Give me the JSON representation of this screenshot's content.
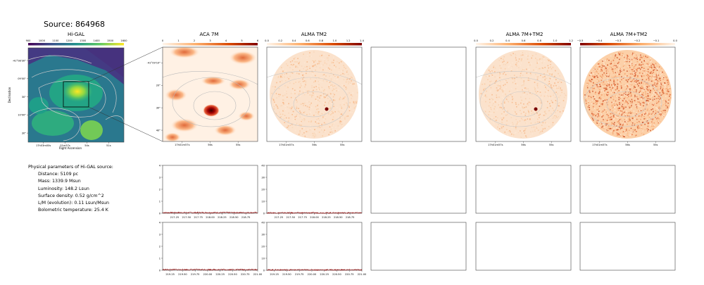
{
  "title": "Source: 864968",
  "panels": {
    "higal": {
      "title": "Hi-GAL",
      "xlabel": "Right Ascension",
      "ylabel": "Declination",
      "colorbar_ticks": [
        "900",
        "1000",
        "1100",
        "1200",
        "1300",
        "1400",
        "1500",
        "1600"
      ],
      "ra_ticks": [
        "17h03m00s",
        "01m57s",
        "54s",
        "51s"
      ],
      "dec_ticks": [
        "-41°08'30\"",
        "09'00\"",
        "30\"",
        "10'00\"",
        "30\""
      ]
    },
    "aca": {
      "title": "ACA 7M",
      "colorbar_ticks": [
        "0",
        "1",
        "2",
        "3",
        "4",
        "5",
        "6"
      ],
      "ra_ticks": [
        "17h01m57s",
        "56s",
        "55s"
      ],
      "dec_ticks": [
        "-41°09'10\"",
        "20\"",
        "30\"",
        "40\""
      ]
    },
    "alma_tm2": {
      "title": "ALMA TM2",
      "colorbar_ticks": [
        "0.0",
        "0.2",
        "0.4",
        "0.6",
        "0.8",
        "1.0",
        "1.2",
        "1.4"
      ],
      "ra_ticks": [
        "17h01m57s",
        "56s",
        "55s"
      ]
    },
    "combined": {
      "title": "ALMA 7M+TM2",
      "colorbar_ticks": [
        "0.0",
        "0.2",
        "0.4",
        "0.6",
        "0.8",
        "1.0",
        "1.2"
      ],
      "ra_ticks": [
        "17h01m57s",
        "56s",
        "55s"
      ]
    },
    "combined2": {
      "title": "ALMA 7M+TM2",
      "colorbar_ticks": [
        "−0.5",
        "−0.4",
        "−0.3",
        "−0.2",
        "−0.1",
        "0.0"
      ],
      "ra_ticks": [
        "17h01m57s",
        "56s",
        "55s"
      ]
    }
  },
  "params": {
    "heading": "Physical parameters of Hi-GAL source:",
    "items": [
      "Distance: 5109 pc",
      "Mass: 1339.9 Msun",
      "Luminosity: 148.2 Lsun",
      "Surface density: 0.52 g/cm^2",
      "L/M (evolution): 0.11 Lsun/Msun",
      "Bolometric temperature: 25.4 K"
    ]
  },
  "chart_data": [
    {
      "type": "line",
      "panel": "spectrum-aca-row1",
      "x_ticks": [
        "217.25",
        "217.50",
        "217.75",
        "218.00",
        "218.25",
        "218.50",
        "218.75"
      ],
      "xlim": [
        217.0,
        219.0
      ],
      "ylim": [
        0,
        4
      ],
      "y_ticks": [
        "0",
        "1",
        "2",
        "3",
        "4"
      ],
      "level": 0.05
    },
    {
      "type": "line",
      "panel": "spectrum-tm2-row1",
      "x_ticks": [
        "217.25",
        "217.50",
        "217.75",
        "218.00",
        "218.25",
        "218.50",
        "218.75"
      ],
      "xlim": [
        217.0,
        219.0
      ],
      "ylim": [
        0,
        40
      ],
      "y_ticks": [
        "0",
        "10",
        "20",
        "30",
        "40"
      ],
      "level": 0.3
    },
    {
      "type": "line",
      "panel": "spectrum-aca-row2",
      "x_ticks": [
        "219.25",
        "219.50",
        "219.75",
        "220.00",
        "220.25",
        "220.50",
        "220.75",
        "221.00"
      ],
      "xlim": [
        219.1,
        221.0
      ],
      "ylim": [
        0,
        4
      ],
      "y_ticks": [
        "0",
        "1",
        "2",
        "3",
        "4"
      ],
      "level": 0.05
    },
    {
      "type": "line",
      "panel": "spectrum-tm2-row2",
      "x_ticks": [
        "219.25",
        "219.50",
        "219.75",
        "220.00",
        "220.25",
        "220.50",
        "220.75",
        "221.00"
      ],
      "xlim": [
        219.1,
        221.0
      ],
      "ylim": [
        0,
        40
      ],
      "y_ticks": [
        "0",
        "10",
        "20",
        "30",
        "40"
      ],
      "level": 0.3
    }
  ],
  "colors": {
    "spectrum": "#8b0000",
    "contour": "#bbbbbb",
    "frame": "#444444"
  }
}
